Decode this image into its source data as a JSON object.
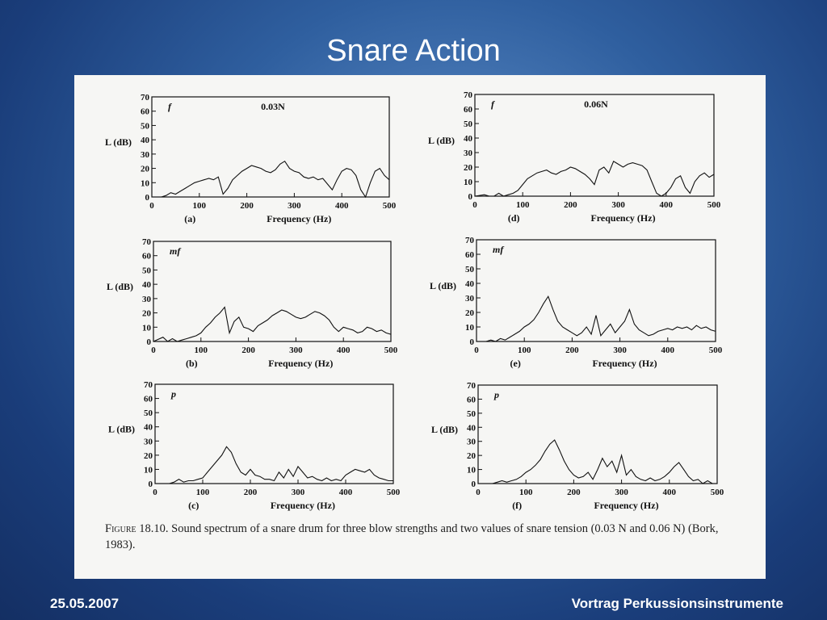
{
  "slide": {
    "title": "Snare Action",
    "footer_left": "25.05.2007",
    "footer_right": "Vortrag Perkussionsinstrumente"
  },
  "figure": {
    "caption_label": "Figure 18.10.",
    "caption_text": "Sound spectrum of a snare drum for three blow strengths and two values of snare tension (0.03 N and 0.06 N) (Bork, 1983)."
  },
  "chart_data": [
    {
      "type": "line",
      "panel": "(a)",
      "dynamic": "f",
      "tension": "0.03N",
      "xlabel": "Frequency (Hz)",
      "ylabel": "L (dB)",
      "xlim": [
        0,
        500
      ],
      "ylim": [
        0,
        70
      ],
      "xticks": [
        0,
        100,
        200,
        300,
        400,
        500
      ],
      "yticks": [
        0,
        10,
        20,
        30,
        40,
        50,
        60,
        70
      ],
      "x": [
        0,
        20,
        30,
        40,
        50,
        60,
        70,
        80,
        90,
        100,
        110,
        120,
        130,
        140,
        150,
        160,
        170,
        180,
        190,
        200,
        210,
        220,
        230,
        240,
        250,
        260,
        270,
        280,
        290,
        300,
        310,
        320,
        330,
        340,
        350,
        360,
        370,
        380,
        390,
        400,
        410,
        420,
        430,
        440,
        450,
        460,
        470,
        480,
        490,
        500
      ],
      "y": [
        0,
        0,
        1,
        3,
        2,
        4,
        6,
        8,
        10,
        11,
        12,
        13,
        12,
        14,
        2,
        6,
        12,
        15,
        18,
        20,
        22,
        21,
        20,
        18,
        17,
        19,
        23,
        25,
        20,
        18,
        17,
        14,
        13,
        14,
        12,
        13,
        9,
        5,
        12,
        18,
        20,
        19,
        15,
        5,
        0,
        10,
        18,
        20,
        15,
        12
      ]
    },
    {
      "type": "line",
      "panel": "(b)",
      "dynamic": "mf",
      "xlabel": "Frequency (Hz)",
      "ylabel": "L (dB)",
      "xlim": [
        0,
        500
      ],
      "ylim": [
        0,
        70
      ],
      "xticks": [
        0,
        100,
        200,
        300,
        400,
        500
      ],
      "yticks": [
        0,
        10,
        20,
        30,
        40,
        50,
        60,
        70
      ],
      "x": [
        0,
        20,
        30,
        40,
        50,
        60,
        70,
        80,
        90,
        100,
        110,
        120,
        130,
        140,
        150,
        160,
        170,
        180,
        190,
        200,
        210,
        220,
        230,
        240,
        250,
        260,
        270,
        280,
        290,
        300,
        310,
        320,
        330,
        340,
        350,
        360,
        370,
        380,
        390,
        400,
        410,
        420,
        430,
        440,
        450,
        460,
        470,
        480,
        490,
        500
      ],
      "y": [
        0,
        3,
        0,
        2,
        0,
        1,
        2,
        3,
        4,
        6,
        10,
        13,
        17,
        20,
        24,
        6,
        14,
        17,
        10,
        9,
        7,
        11,
        13,
        15,
        18,
        20,
        22,
        21,
        19,
        17,
        16,
        17,
        19,
        21,
        20,
        18,
        15,
        10,
        7,
        10,
        9,
        8,
        6,
        7,
        10,
        9,
        7,
        8,
        6,
        5
      ]
    },
    {
      "type": "line",
      "panel": "(c)",
      "dynamic": "p",
      "xlabel": "Frequency (Hz)",
      "ylabel": "L (dB)",
      "xlim": [
        0,
        500
      ],
      "ylim": [
        0,
        70
      ],
      "xticks": [
        0,
        100,
        200,
        300,
        400,
        500
      ],
      "yticks": [
        0,
        10,
        20,
        30,
        40,
        50,
        60,
        70
      ],
      "x": [
        0,
        20,
        30,
        40,
        50,
        60,
        70,
        80,
        90,
        100,
        110,
        120,
        130,
        140,
        150,
        160,
        170,
        180,
        190,
        200,
        210,
        220,
        230,
        240,
        250,
        260,
        270,
        280,
        290,
        300,
        310,
        320,
        330,
        340,
        350,
        360,
        370,
        380,
        390,
        400,
        410,
        420,
        430,
        440,
        450,
        460,
        470,
        480,
        490,
        500
      ],
      "y": [
        0,
        0,
        0,
        1,
        3,
        1,
        2,
        2,
        3,
        4,
        8,
        12,
        16,
        20,
        26,
        22,
        14,
        8,
        6,
        10,
        6,
        5,
        3,
        3,
        2,
        8,
        4,
        10,
        5,
        12,
        8,
        4,
        5,
        3,
        2,
        4,
        2,
        3,
        2,
        6,
        8,
        10,
        9,
        8,
        10,
        6,
        4,
        3,
        2,
        2
      ]
    },
    {
      "type": "line",
      "panel": "(d)",
      "dynamic": "f",
      "tension": "0.06N",
      "xlabel": "Frequency (Hz)",
      "ylabel": "L (dB)",
      "xlim": [
        0,
        500
      ],
      "ylim": [
        0,
        70
      ],
      "xticks": [
        0,
        100,
        200,
        300,
        400,
        500
      ],
      "yticks": [
        0,
        10,
        20,
        30,
        40,
        50,
        60,
        70
      ],
      "x": [
        0,
        20,
        30,
        40,
        50,
        60,
        70,
        80,
        90,
        100,
        110,
        120,
        130,
        140,
        150,
        160,
        170,
        180,
        190,
        200,
        210,
        220,
        230,
        240,
        250,
        260,
        270,
        280,
        290,
        300,
        310,
        320,
        330,
        340,
        350,
        360,
        370,
        380,
        390,
        400,
        410,
        420,
        430,
        440,
        450,
        460,
        470,
        480,
        490,
        500
      ],
      "y": [
        0,
        1,
        0,
        0,
        2,
        0,
        1,
        2,
        4,
        8,
        12,
        14,
        16,
        17,
        18,
        16,
        15,
        17,
        18,
        20,
        19,
        17,
        15,
        12,
        8,
        18,
        20,
        16,
        24,
        22,
        20,
        22,
        23,
        22,
        21,
        18,
        10,
        2,
        0,
        2,
        6,
        12,
        14,
        6,
        2,
        10,
        14,
        16,
        13,
        15
      ]
    },
    {
      "type": "line",
      "panel": "(e)",
      "dynamic": "mf",
      "xlabel": "Frequency (Hz)",
      "ylabel": "L (dB)",
      "xlim": [
        0,
        500
      ],
      "ylim": [
        0,
        70
      ],
      "xticks": [
        0,
        100,
        200,
        300,
        400,
        500
      ],
      "yticks": [
        0,
        10,
        20,
        30,
        40,
        50,
        60,
        70
      ],
      "x": [
        0,
        20,
        30,
        40,
        50,
        60,
        70,
        80,
        90,
        100,
        110,
        120,
        130,
        140,
        150,
        160,
        170,
        180,
        190,
        200,
        210,
        220,
        230,
        240,
        250,
        260,
        270,
        280,
        290,
        300,
        310,
        320,
        330,
        340,
        350,
        360,
        370,
        380,
        390,
        400,
        410,
        420,
        430,
        440,
        450,
        460,
        470,
        480,
        490,
        500
      ],
      "y": [
        0,
        0,
        1,
        0,
        2,
        1,
        3,
        5,
        7,
        10,
        12,
        15,
        20,
        26,
        31,
        22,
        14,
        10,
        8,
        6,
        4,
        6,
        10,
        5,
        18,
        4,
        8,
        12,
        6,
        10,
        14,
        22,
        12,
        8,
        6,
        4,
        5,
        7,
        8,
        9,
        8,
        10,
        9,
        10,
        8,
        11,
        9,
        10,
        8,
        7
      ]
    },
    {
      "type": "line",
      "panel": "(f)",
      "dynamic": "p",
      "xlabel": "Frequency (Hz)",
      "ylabel": "L (dB)",
      "xlim": [
        0,
        500
      ],
      "ylim": [
        0,
        70
      ],
      "xticks": [
        0,
        100,
        200,
        300,
        400,
        500
      ],
      "yticks": [
        0,
        10,
        20,
        30,
        40,
        50,
        60,
        70
      ],
      "x": [
        0,
        20,
        30,
        40,
        50,
        60,
        70,
        80,
        90,
        100,
        110,
        120,
        130,
        140,
        150,
        160,
        170,
        180,
        190,
        200,
        210,
        220,
        230,
        240,
        250,
        260,
        270,
        280,
        290,
        300,
        310,
        320,
        330,
        340,
        350,
        360,
        370,
        380,
        390,
        400,
        410,
        420,
        430,
        440,
        450,
        460,
        470,
        480,
        490,
        500
      ],
      "y": [
        0,
        0,
        0,
        1,
        2,
        1,
        2,
        3,
        5,
        8,
        10,
        13,
        17,
        23,
        28,
        31,
        24,
        16,
        10,
        6,
        4,
        5,
        8,
        3,
        10,
        18,
        12,
        16,
        8,
        20,
        6,
        10,
        5,
        3,
        2,
        4,
        2,
        3,
        5,
        8,
        12,
        15,
        10,
        5,
        2,
        3,
        0,
        2,
        0,
        0
      ]
    }
  ]
}
